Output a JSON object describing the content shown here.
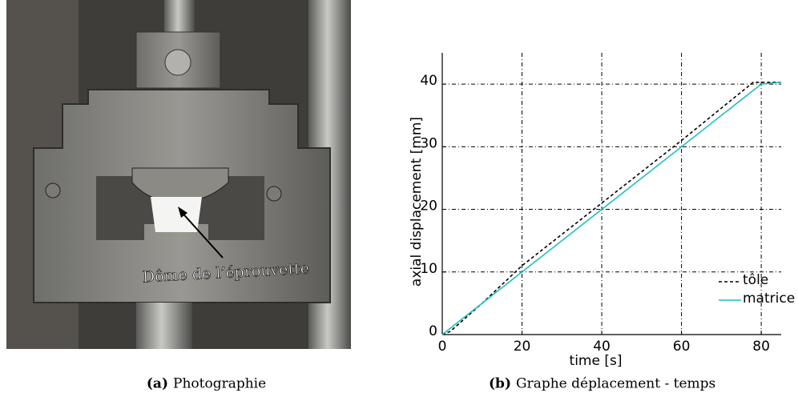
{
  "photo": {
    "annotation": "Dôme de l’éprouvette"
  },
  "captions": [
    {
      "label": "(a)",
      "text": "Photographie"
    },
    {
      "label": "(b)",
      "text": "Graphe déplacement - temps"
    }
  ],
  "chart_data": {
    "type": "line",
    "xlabel": "time [s]",
    "ylabel": "axial displacement [mm]",
    "xlim": [
      0,
      85
    ],
    "ylim": [
      0,
      45
    ],
    "xticks": [
      0,
      20,
      40,
      60,
      80
    ],
    "yticks": [
      0,
      10,
      20,
      30,
      40
    ],
    "grid": true,
    "legend": "lower right",
    "series": [
      {
        "name": "tôle",
        "color": "#000000",
        "dash": true,
        "x": [
          0,
          2,
          10,
          20,
          40,
          60,
          78,
          85
        ],
        "values": [
          0,
          0.5,
          5,
          11,
          21,
          31,
          40.3,
          40.3
        ]
      },
      {
        "name": "matrice",
        "color": "#1fbfbf",
        "dash": false,
        "x": [
          0,
          80,
          85
        ],
        "values": [
          0,
          40,
          40.3
        ]
      }
    ]
  }
}
